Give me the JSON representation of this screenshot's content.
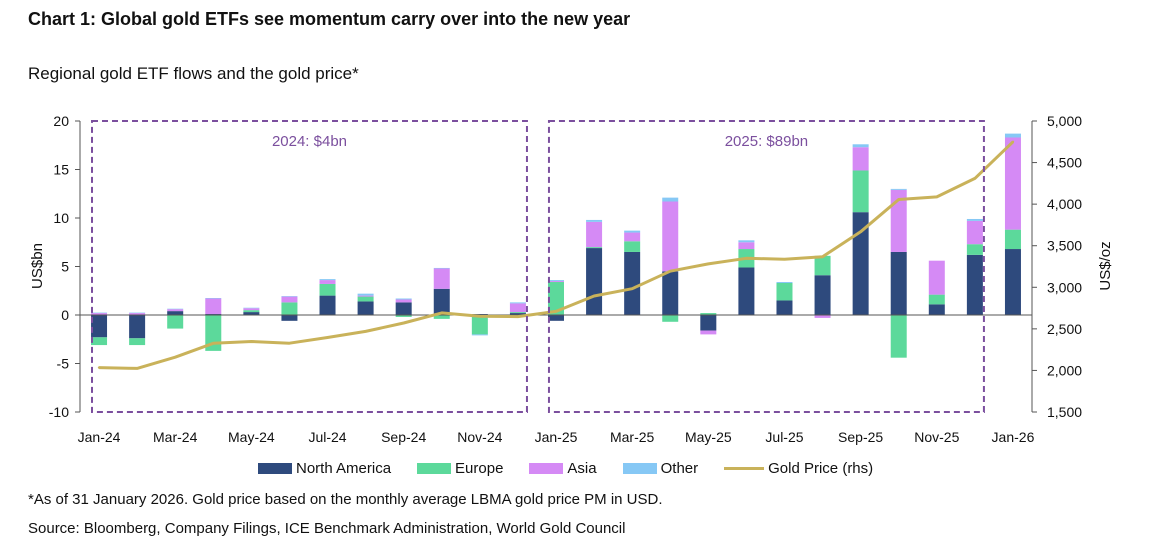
{
  "title": "Chart 1: Global gold ETFs see momentum carry over into the new year",
  "subtitle": "Regional gold ETF flows and the gold price*",
  "footnote": "*As of 31 January 2026. Gold price based on the monthly average LBMA gold price PM in USD.",
  "source": "Source: Bloomberg, Company Filings, ICE Benchmark Administration, World Gold Council",
  "colors": {
    "north_america": "#2e4a7d",
    "europe": "#5cd99b",
    "asia": "#d58af5",
    "other": "#86c8f5",
    "gold_price": "#c9b25a",
    "box": "#7b4f9e",
    "axis": "#555555"
  },
  "chart_data": {
    "type": "bar",
    "stacked": true,
    "categories": [
      "Jan-24",
      "Feb-24",
      "Mar-24",
      "Apr-24",
      "May-24",
      "Jun-24",
      "Jul-24",
      "Aug-24",
      "Sep-24",
      "Oct-24",
      "Nov-24",
      "Dec-24",
      "Jan-25",
      "Feb-25",
      "Mar-25",
      "Apr-25",
      "May-25",
      "Jun-25",
      "Jul-25",
      "Aug-25",
      "Sep-25",
      "Oct-25",
      "Nov-25",
      "Dec-25",
      "Jan-26"
    ],
    "x_tick_labels": [
      "Jan-24",
      "Mar-24",
      "May-24",
      "Jul-24",
      "Sep-24",
      "Nov-24",
      "Jan-25",
      "Mar-25",
      "May-25",
      "Jul-25",
      "Sep-25",
      "Nov-25",
      "Jan-26"
    ],
    "series": [
      {
        "name": "North America",
        "color_key": "north_america",
        "values": [
          -2.3,
          -2.4,
          0.4,
          0.1,
          0.3,
          -0.6,
          2.0,
          1.4,
          1.3,
          2.7,
          0.1,
          0.2,
          -0.6,
          6.9,
          6.5,
          4.5,
          -1.6,
          4.9,
          1.5,
          4.1,
          10.6,
          6.5,
          1.1,
          6.2,
          6.8
        ]
      },
      {
        "name": "Europe",
        "color_key": "europe",
        "values": [
          -0.8,
          -0.7,
          -1.4,
          -3.7,
          0.2,
          1.3,
          1.2,
          0.5,
          -0.2,
          -0.4,
          -2.0,
          0.1,
          3.4,
          0.1,
          1.1,
          -0.7,
          0.2,
          1.9,
          1.8,
          2.0,
          4.3,
          -4.4,
          1.0,
          1.1,
          2.0
        ]
      },
      {
        "name": "Asia",
        "color_key": "asia",
        "values": [
          0.2,
          0.2,
          0.2,
          1.6,
          0.2,
          0.6,
          0.4,
          0.1,
          0.3,
          2.1,
          0.0,
          0.9,
          0.1,
          2.6,
          0.9,
          7.2,
          -0.4,
          0.7,
          0.0,
          -0.3,
          2.4,
          6.4,
          3.5,
          2.4,
          9.5
        ]
      },
      {
        "name": "Other",
        "color_key": "other",
        "values": [
          0.05,
          0.05,
          0.05,
          0.05,
          0.05,
          0.05,
          0.1,
          0.2,
          0.1,
          0.05,
          -0.1,
          0.1,
          0.1,
          0.2,
          0.2,
          0.4,
          0.0,
          0.2,
          0.1,
          0.0,
          0.3,
          0.1,
          0.0,
          0.2,
          0.4
        ]
      }
    ],
    "line_series": {
      "name": "Gold Price (rhs)",
      "color_key": "gold_price",
      "axis": "right",
      "values": [
        2034,
        2025,
        2159,
        2326,
        2348,
        2327,
        2396,
        2470,
        2570,
        2692,
        2652,
        2648,
        2710,
        2895,
        2983,
        3194,
        3281,
        3349,
        3338,
        3368,
        3667,
        4056,
        4087,
        4310,
        4750
      ]
    },
    "ylabel": "US$bn",
    "ylim": [
      -10,
      20
    ],
    "yticks": [
      -10,
      -5,
      0,
      5,
      10,
      15,
      20
    ],
    "ytick_labels": [
      "-10",
      "-5",
      "0",
      "5",
      "10",
      "15",
      "20"
    ],
    "y2label": "US$/oz",
    "y2lim": [
      1500,
      5000
    ],
    "y2ticks": [
      1500,
      2000,
      2500,
      3000,
      3500,
      4000,
      4500,
      5000
    ],
    "y2tick_labels": [
      "1,500",
      "2,000",
      "2,500",
      "3,000",
      "3,500",
      "4,000",
      "4,500",
      "5,000"
    ],
    "annotations": [
      {
        "label": "2024: $4bn",
        "from_category": 0,
        "to_category": 11
      },
      {
        "label": "2025: $89bn",
        "from_category": 12,
        "to_category": 23
      }
    ],
    "grid": false,
    "legend_position": "bottom"
  }
}
